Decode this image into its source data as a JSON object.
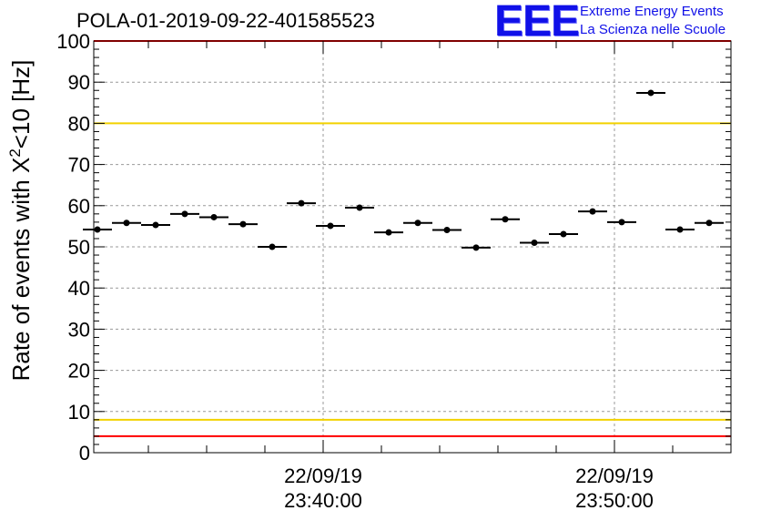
{
  "title": "POLA-01-2019-09-22-401585523",
  "logo": {
    "mark": "EEE",
    "line1": "Extreme Energy Events",
    "line2": "La Scienza nelle Scuole"
  },
  "colors": {
    "red_line": "#ff0000",
    "yellow_line": "#f2d200",
    "grid": "#999999",
    "markers": "#000000",
    "logo": "#1010e8"
  },
  "chart_data": {
    "type": "scatter",
    "title": "POLA-01-2019-09-22-401585523",
    "ylabel": "Rate of events with X²<10 [Hz]",
    "xlabel": "",
    "ylim": [
      0,
      100
    ],
    "yticks": [
      0,
      10,
      20,
      30,
      40,
      50,
      60,
      70,
      80,
      90,
      100
    ],
    "xticks": [
      {
        "time": "22/09/19 23:40:00",
        "date": "22/09/19",
        "clock": "23:40:00"
      },
      {
        "time": "22/09/19 23:50:00",
        "date": "22/09/19",
        "clock": "23:50:00"
      }
    ],
    "xlim": [
      "22/09/19 23:32:15",
      "22/09/19 23:54:00"
    ],
    "bin_width_seconds": 60,
    "grid": true,
    "reference_lines": [
      {
        "y": 100,
        "color": "red"
      },
      {
        "y": 80,
        "color": "yellow"
      },
      {
        "y": 8,
        "color": "yellow"
      },
      {
        "y": 4,
        "color": "red"
      }
    ],
    "points": [
      {
        "x": "22/09/19 23:32:15",
        "y": 54.2
      },
      {
        "x": "22/09/19 23:33:15",
        "y": 55.8
      },
      {
        "x": "22/09/19 23:34:15",
        "y": 55.3
      },
      {
        "x": "22/09/19 23:35:15",
        "y": 58.0
      },
      {
        "x": "22/09/19 23:36:15",
        "y": 57.2
      },
      {
        "x": "22/09/19 23:37:15",
        "y": 55.5
      },
      {
        "x": "22/09/19 23:38:15",
        "y": 50.0
      },
      {
        "x": "22/09/19 23:39:15",
        "y": 60.6
      },
      {
        "x": "22/09/19 23:40:15",
        "y": 55.1
      },
      {
        "x": "22/09/19 23:41:15",
        "y": 59.5
      },
      {
        "x": "22/09/19 23:42:15",
        "y": 53.5
      },
      {
        "x": "22/09/19 23:43:15",
        "y": 55.8
      },
      {
        "x": "22/09/19 23:44:15",
        "y": 54.1
      },
      {
        "x": "22/09/19 23:45:15",
        "y": 49.8
      },
      {
        "x": "22/09/19 23:46:15",
        "y": 56.7
      },
      {
        "x": "22/09/19 23:47:15",
        "y": 51.0
      },
      {
        "x": "22/09/19 23:48:15",
        "y": 53.1
      },
      {
        "x": "22/09/19 23:49:15",
        "y": 58.6
      },
      {
        "x": "22/09/19 23:50:15",
        "y": 56.0
      },
      {
        "x": "22/09/19 23:51:15",
        "y": 87.4
      },
      {
        "x": "22/09/19 23:52:15",
        "y": 54.2
      },
      {
        "x": "22/09/19 23:53:15",
        "y": 55.8
      }
    ]
  }
}
